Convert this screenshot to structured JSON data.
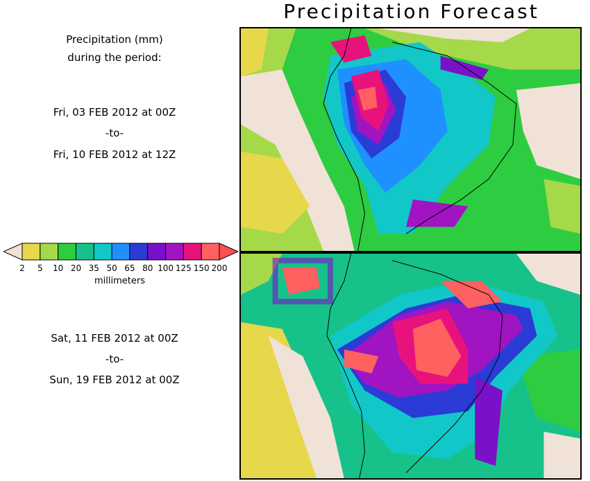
{
  "title": "Precipitation Forecast",
  "legend": {
    "heading_line1": "Precipitation (mm)",
    "heading_line2": "during the period:",
    "units": "millimeters",
    "ticks": [
      "2",
      "5",
      "10",
      "20",
      "35",
      "50",
      "65",
      "80",
      "100",
      "125",
      "150",
      "200"
    ],
    "colors": [
      "#e6d84a",
      "#a6d94a",
      "#2ecc40",
      "#16c28a",
      "#12c7c7",
      "#1e90ff",
      "#2b3bd6",
      "#7b10c9",
      "#a014c2",
      "#e8127d",
      "#ff6060"
    ],
    "under_color": "#f0e2d6",
    "over_color": "#ff5050"
  },
  "period1": {
    "start": "Fri, 03 FEB 2012 at 00Z",
    "sep": "-to-",
    "end": "Fri, 10 FEB 2012 at 12Z"
  },
  "period2": {
    "start": "Sat, 11 FEB 2012 at 00Z",
    "sep": "-to-",
    "end": "Sun, 19 FEB 2012 at 00Z"
  }
}
